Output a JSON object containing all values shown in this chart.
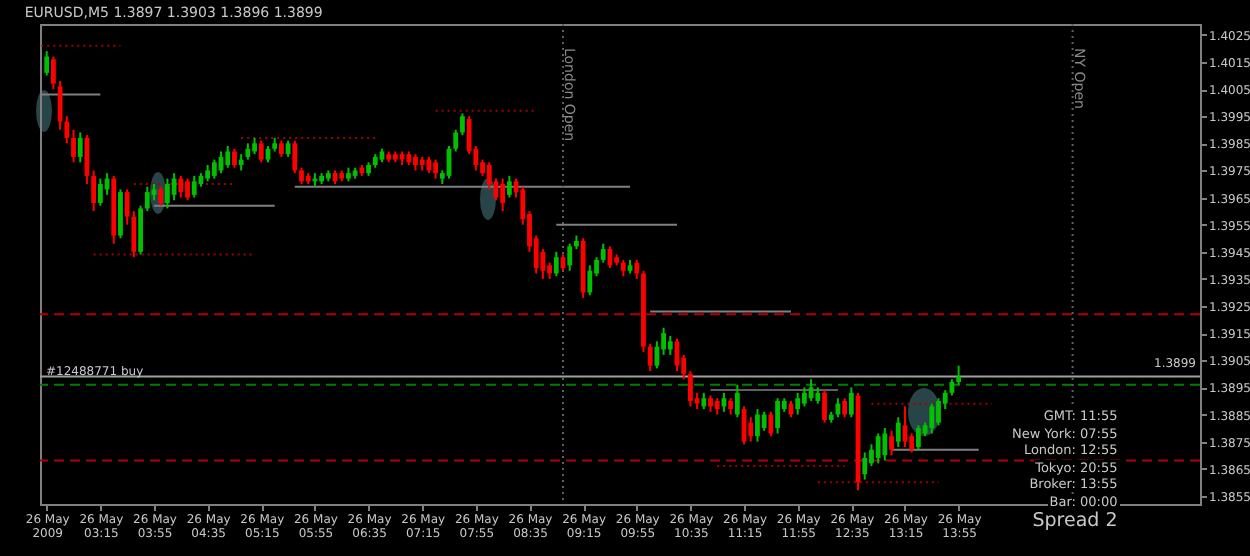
{
  "chart_data": {
    "type": "candlestick",
    "title": "EURUSD,M5 1.3897 1.3903 1.3896 1.3899",
    "colors": [
      "#00c000",
      "#ff0000",
      "#ff0000",
      "#ff0000",
      "#ff0000",
      "#00c000",
      "#ff0000",
      "#ff0000",
      "#00c000",
      "#00c000",
      "#ff0000",
      "#00c000",
      "#ff0000",
      "#ff0000",
      "#00c000",
      "#00c000",
      "#00c000",
      "#ff0000",
      "#00c000",
      "#00c000",
      "#ff0000",
      "#ff0000",
      "#00c000",
      "#00c000",
      "#00c000",
      "#00c000",
      "#00c000",
      "#00c000",
      "#ff0000",
      "#00c000",
      "#00c000",
      "#00c000",
      "#ff0000",
      "#00c000",
      "#00c000",
      "#ff0000",
      "#00c000",
      "#ff0000",
      "#ff0000",
      "#ff0000",
      "#00c000",
      "#00c000",
      "#00c000",
      "#ff0000",
      "#ff0000",
      "#00c000",
      "#00c000",
      "#ff0000",
      "#00c000",
      "#00c000",
      "#00c000",
      "#ff0000",
      "#ff0000",
      "#ff0000",
      "#ff0000",
      "#ff0000",
      "#ff0000",
      "#ff0000",
      "#ff0000",
      "#00c000",
      "#00c000",
      "#00c000",
      "#00c000",
      "#ff0000",
      "#ff0000",
      "#ff0000",
      "#ff0000",
      "#ff0000",
      "#ff0000",
      "#00c000",
      "#ff0000",
      "#ff0000",
      "#ff0000",
      "#ff0000",
      "#ff0000",
      "#ff0000",
      "#00c000",
      "#ff0000",
      "#00c000",
      "#00c000",
      "#ff0000",
      "#00c000",
      "#00c000",
      "#00c000",
      "#ff0000",
      "#ff0000",
      "#ff0000",
      "#00c000",
      "#ff0000",
      "#ff0000",
      "#ff0000",
      "#00c000",
      "#00c000",
      "#00c000",
      "#ff0000",
      "#ff0000",
      "#ff0000",
      "#ff0000",
      "#00c000",
      "#ff0000",
      "#ff0000",
      "#00c000",
      "#ff0000",
      "#00c000",
      "#ff0000",
      "#ff0000",
      "#00c000",
      "#00c000",
      "#ff0000",
      "#00c000",
      "#00c000",
      "#ff0000",
      "#00c000",
      "#00c000",
      "#00c000",
      "#00c000",
      "#ff0000",
      "#00c000",
      "#00c000",
      "#ff0000",
      "#00c000",
      "#ff0000",
      "#00c000",
      "#00c000",
      "#00c000",
      "#00c000",
      "#ff0000",
      "#00c000",
      "#ff0000",
      "#ff0000",
      "#00c000",
      "#00c000",
      "#00c000",
      "#00c000",
      "#00c000",
      "#00c000",
      "#00c000"
    ],
    "x": [
      "2009-05-26T02:35",
      "2009-05-26T02:40",
      "2009-05-26T02:45",
      "2009-05-26T02:50",
      "2009-05-26T02:55",
      "2009-05-26T03:00",
      "2009-05-26T03:05",
      "2009-05-26T03:10",
      "2009-05-26T03:15",
      "2009-05-26T03:20",
      "2009-05-26T03:25",
      "2009-05-26T03:30",
      "2009-05-26T03:35",
      "2009-05-26T03:40",
      "2009-05-26T03:45",
      "2009-05-26T03:50",
      "2009-05-26T03:55",
      "2009-05-26T04:00",
      "2009-05-26T04:05",
      "2009-05-26T04:10",
      "2009-05-26T04:15",
      "2009-05-26T04:20",
      "2009-05-26T04:25",
      "2009-05-26T04:30",
      "2009-05-26T04:35",
      "2009-05-26T04:40",
      "2009-05-26T04:45",
      "2009-05-26T04:50",
      "2009-05-26T04:55",
      "2009-05-26T05:00",
      "2009-05-26T05:05",
      "2009-05-26T05:10",
      "2009-05-26T05:15",
      "2009-05-26T05:20",
      "2009-05-26T05:25",
      "2009-05-26T05:30",
      "2009-05-26T05:35",
      "2009-05-26T05:40",
      "2009-05-26T05:45",
      "2009-05-26T05:50",
      "2009-05-26T05:55",
      "2009-05-26T06:00",
      "2009-05-26T06:05",
      "2009-05-26T06:10",
      "2009-05-26T06:15",
      "2009-05-26T06:20",
      "2009-05-26T06:25",
      "2009-05-26T06:30",
      "2009-05-26T06:35",
      "2009-05-26T06:40",
      "2009-05-26T06:45",
      "2009-05-26T06:50",
      "2009-05-26T06:55",
      "2009-05-26T07:00",
      "2009-05-26T07:05",
      "2009-05-26T07:10",
      "2009-05-26T07:15",
      "2009-05-26T07:20",
      "2009-05-26T07:25",
      "2009-05-26T07:30",
      "2009-05-26T07:35",
      "2009-05-26T07:40",
      "2009-05-26T07:45",
      "2009-05-26T07:50",
      "2009-05-26T07:55",
      "2009-05-26T08:00",
      "2009-05-26T08:05",
      "2009-05-26T08:10",
      "2009-05-26T08:15",
      "2009-05-26T08:20",
      "2009-05-26T08:25",
      "2009-05-26T08:30",
      "2009-05-26T08:35",
      "2009-05-26T08:40",
      "2009-05-26T08:45",
      "2009-05-26T08:50",
      "2009-05-26T08:55",
      "2009-05-26T09:00",
      "2009-05-26T09:05",
      "2009-05-26T09:10",
      "2009-05-26T09:15",
      "2009-05-26T09:20",
      "2009-05-26T09:25",
      "2009-05-26T09:30",
      "2009-05-26T09:35",
      "2009-05-26T09:40",
      "2009-05-26T09:45",
      "2009-05-26T09:50",
      "2009-05-26T09:55",
      "2009-05-26T10:00",
      "2009-05-26T10:05",
      "2009-05-26T10:10",
      "2009-05-26T10:15",
      "2009-05-26T10:20",
      "2009-05-26T10:25",
      "2009-05-26T10:30",
      "2009-05-26T10:35",
      "2009-05-26T10:40",
      "2009-05-26T10:45",
      "2009-05-26T10:50",
      "2009-05-26T10:55",
      "2009-05-26T11:00",
      "2009-05-26T11:05",
      "2009-05-26T11:10",
      "2009-05-26T11:15",
      "2009-05-26T11:20",
      "2009-05-26T11:25",
      "2009-05-26T11:30",
      "2009-05-26T11:35",
      "2009-05-26T11:40",
      "2009-05-26T11:45",
      "2009-05-26T11:50",
      "2009-05-26T11:55",
      "2009-05-26T12:00",
      "2009-05-26T12:05",
      "2009-05-26T12:10",
      "2009-05-26T12:15",
      "2009-05-26T12:20",
      "2009-05-26T12:25",
      "2009-05-26T12:30",
      "2009-05-26T12:35",
      "2009-05-26T12:40",
      "2009-05-26T12:45",
      "2009-05-26T12:50",
      "2009-05-26T12:55",
      "2009-05-26T13:00",
      "2009-05-26T13:05",
      "2009-05-26T13:10",
      "2009-05-26T13:15",
      "2009-05-26T13:20",
      "2009-05-26T13:25",
      "2009-05-26T13:30",
      "2009-05-26T13:35",
      "2009-05-26T13:40",
      "2009-05-26T13:45",
      "2009-05-26T13:50",
      "2009-05-26T13:55"
    ],
    "ohlc": [
      [
        1.4011,
        1.4019,
        1.401,
        1.4017
      ],
      [
        1.4016,
        1.4017,
        1.4005,
        1.4007
      ],
      [
        1.4006,
        1.4008,
        1.399,
        1.3993
      ],
      [
        1.3993,
        1.3995,
        1.3985,
        1.3987
      ],
      [
        1.3987,
        1.399,
        1.3978,
        1.398
      ],
      [
        1.398,
        1.3989,
        1.3978,
        1.3987
      ],
      [
        1.3987,
        1.3988,
        1.397,
        1.3973
      ],
      [
        1.3973,
        1.3975,
        1.396,
        1.3963
      ],
      [
        1.3963,
        1.3972,
        1.3962,
        1.397
      ],
      [
        1.3968,
        1.3974,
        1.3966,
        1.3972
      ],
      [
        1.3972,
        1.3973,
        1.3948,
        1.3951
      ],
      [
        1.3951,
        1.3968,
        1.395,
        1.3967
      ],
      [
        1.3967,
        1.3968,
        1.3955,
        1.3958
      ],
      [
        1.3958,
        1.396,
        1.3943,
        1.3945
      ],
      [
        1.3945,
        1.3962,
        1.3944,
        1.3961
      ],
      [
        1.3961,
        1.3969,
        1.396,
        1.3967
      ],
      [
        1.3966,
        1.397,
        1.3964,
        1.3968
      ],
      [
        1.3968,
        1.3969,
        1.3962,
        1.3963
      ],
      [
        1.3963,
        1.3972,
        1.3961,
        1.397
      ],
      [
        1.3966,
        1.3974,
        1.3964,
        1.3972
      ],
      [
        1.3972,
        1.3973,
        1.3965,
        1.3967
      ],
      [
        1.3971,
        1.3972,
        1.3964,
        1.3965
      ],
      [
        1.3966,
        1.3973,
        1.3965,
        1.3971
      ],
      [
        1.397,
        1.3974,
        1.3969,
        1.3973
      ],
      [
        1.3972,
        1.3977,
        1.3971,
        1.3975
      ],
      [
        1.3973,
        1.3979,
        1.3972,
        1.3978
      ],
      [
        1.3975,
        1.3982,
        1.3974,
        1.398
      ],
      [
        1.3977,
        1.3984,
        1.3976,
        1.3982
      ],
      [
        1.3982,
        1.3983,
        1.3976,
        1.3977
      ],
      [
        1.3977,
        1.3981,
        1.3975,
        1.3979
      ],
      [
        1.398,
        1.3985,
        1.3979,
        1.3983
      ],
      [
        1.3982,
        1.3987,
        1.3981,
        1.3985
      ],
      [
        1.3985,
        1.3986,
        1.3978,
        1.3979
      ],
      [
        1.3979,
        1.3984,
        1.3978,
        1.3983
      ],
      [
        1.3983,
        1.3987,
        1.3982,
        1.3985
      ],
      [
        1.3985,
        1.3986,
        1.398,
        1.3981
      ],
      [
        1.3981,
        1.3986,
        1.398,
        1.3985
      ],
      [
        1.3985,
        1.3986,
        1.3974,
        1.3975
      ],
      [
        1.3975,
        1.3976,
        1.397,
        1.3971
      ],
      [
        1.3973,
        1.3974,
        1.397,
        1.3971
      ],
      [
        1.3971,
        1.3974,
        1.3969,
        1.3972
      ],
      [
        1.3971,
        1.3974,
        1.397,
        1.3973
      ],
      [
        1.3972,
        1.3975,
        1.3971,
        1.3974
      ],
      [
        1.3974,
        1.3975,
        1.397,
        1.3971
      ],
      [
        1.3974,
        1.3975,
        1.3971,
        1.3972
      ],
      [
        1.3972,
        1.3976,
        1.3971,
        1.3974
      ],
      [
        1.3973,
        1.3976,
        1.3972,
        1.3975
      ],
      [
        1.3976,
        1.3977,
        1.3973,
        1.3974
      ],
      [
        1.3974,
        1.3978,
        1.3973,
        1.3977
      ],
      [
        1.3977,
        1.3981,
        1.3976,
        1.398
      ],
      [
        1.3979,
        1.3983,
        1.3978,
        1.3982
      ],
      [
        1.3981,
        1.3982,
        1.3978,
        1.3979
      ],
      [
        1.3981,
        1.3982,
        1.3978,
        1.3979
      ],
      [
        1.3981,
        1.3982,
        1.3977,
        1.3979
      ],
      [
        1.3981,
        1.3982,
        1.3977,
        1.3978
      ],
      [
        1.398,
        1.3981,
        1.3975,
        1.3977
      ],
      [
        1.3979,
        1.398,
        1.3975,
        1.3977
      ],
      [
        1.3979,
        1.398,
        1.3974,
        1.3975
      ],
      [
        1.3978,
        1.3979,
        1.3972,
        1.3974
      ],
      [
        1.3972,
        1.3975,
        1.397,
        1.3974
      ],
      [
        1.3973,
        1.3984,
        1.3972,
        1.3983
      ],
      [
        1.3983,
        1.399,
        1.3982,
        1.3989
      ],
      [
        1.3989,
        1.3996,
        1.3988,
        1.3995
      ],
      [
        1.3994,
        1.3995,
        1.3981,
        1.3982
      ],
      [
        1.3983,
        1.3984,
        1.3975,
        1.3977
      ],
      [
        1.3978,
        1.3979,
        1.3973,
        1.3974
      ],
      [
        1.3977,
        1.3978,
        1.3968,
        1.397
      ],
      [
        1.3971,
        1.3972,
        1.3964,
        1.3965
      ],
      [
        1.397,
        1.3972,
        1.396,
        1.3963
      ],
      [
        1.3966,
        1.3973,
        1.3965,
        1.3971
      ],
      [
        1.3971,
        1.3972,
        1.3965,
        1.3967
      ],
      [
        1.3968,
        1.3969,
        1.3955,
        1.3957
      ],
      [
        1.3959,
        1.396,
        1.3945,
        1.3947
      ],
      [
        1.395,
        1.3951,
        1.3937,
        1.3939
      ],
      [
        1.3945,
        1.3946,
        1.3935,
        1.3938
      ],
      [
        1.394,
        1.3941,
        1.3935,
        1.3937
      ],
      [
        1.3937,
        1.3945,
        1.3936,
        1.3943
      ],
      [
        1.3943,
        1.3944,
        1.3938,
        1.3939
      ],
      [
        1.394,
        1.3948,
        1.3938,
        1.3947
      ],
      [
        1.3947,
        1.3951,
        1.3946,
        1.3949
      ],
      [
        1.3949,
        1.395,
        1.3928,
        1.393
      ],
      [
        1.393,
        1.394,
        1.3929,
        1.3938
      ],
      [
        1.3937,
        1.3943,
        1.3936,
        1.3942
      ],
      [
        1.3942,
        1.3948,
        1.3941,
        1.3946
      ],
      [
        1.3946,
        1.3947,
        1.3939,
        1.394
      ],
      [
        1.3943,
        1.3944,
        1.394,
        1.3941
      ],
      [
        1.3941,
        1.3942,
        1.3936,
        1.3938
      ],
      [
        1.3938,
        1.3942,
        1.3937,
        1.394
      ],
      [
        1.3941,
        1.3942,
        1.3935,
        1.3937
      ],
      [
        1.3937,
        1.3938,
        1.3908,
        1.391
      ],
      [
        1.391,
        1.3911,
        1.3901,
        1.3903
      ],
      [
        1.3903,
        1.3912,
        1.3902,
        1.391
      ],
      [
        1.3909,
        1.3917,
        1.3907,
        1.3915
      ],
      [
        1.3909,
        1.3914,
        1.3907,
        1.3912
      ],
      [
        1.3912,
        1.3913,
        1.3901,
        1.3903
      ],
      [
        1.3906,
        1.3907,
        1.3898,
        1.39
      ],
      [
        1.39,
        1.3901,
        1.3888,
        1.389
      ],
      [
        1.3891,
        1.3893,
        1.3887,
        1.3889
      ],
      [
        1.3888,
        1.3893,
        1.3887,
        1.3891
      ],
      [
        1.3891,
        1.3892,
        1.3886,
        1.3888
      ],
      [
        1.389,
        1.3891,
        1.3885,
        1.3887
      ],
      [
        1.3888,
        1.3893,
        1.3886,
        1.3891
      ],
      [
        1.389,
        1.3891,
        1.3885,
        1.3887
      ],
      [
        1.3885,
        1.3896,
        1.3884,
        1.3893
      ],
      [
        1.3887,
        1.3888,
        1.3874,
        1.3875
      ],
      [
        1.3882,
        1.3884,
        1.3875,
        1.3877
      ],
      [
        1.3877,
        1.3887,
        1.3875,
        1.3885
      ],
      [
        1.388,
        1.3886,
        1.3879,
        1.3885
      ],
      [
        1.3885,
        1.3886,
        1.3877,
        1.3878
      ],
      [
        1.388,
        1.3891,
        1.3878,
        1.389
      ],
      [
        1.3887,
        1.3891,
        1.3886,
        1.389
      ],
      [
        1.3889,
        1.389,
        1.3884,
        1.3885
      ],
      [
        1.3887,
        1.3893,
        1.3885,
        1.3891
      ],
      [
        1.3889,
        1.3895,
        1.3888,
        1.3893
      ],
      [
        1.3891,
        1.3898,
        1.389,
        1.3895
      ],
      [
        1.389,
        1.3895,
        1.3889,
        1.3893
      ],
      [
        1.3893,
        1.3894,
        1.3882,
        1.3883
      ],
      [
        1.3883,
        1.3886,
        1.3882,
        1.3885
      ],
      [
        1.3885,
        1.3891,
        1.3884,
        1.3889
      ],
      [
        1.389,
        1.3891,
        1.3884,
        1.3885
      ],
      [
        1.3885,
        1.3895,
        1.3884,
        1.3893
      ],
      [
        1.3892,
        1.3893,
        1.3857,
        1.386
      ],
      [
        1.3863,
        1.3871,
        1.3861,
        1.3869
      ],
      [
        1.3867,
        1.3874,
        1.3866,
        1.3872
      ],
      [
        1.3869,
        1.3878,
        1.3867,
        1.3877
      ],
      [
        1.387,
        1.388,
        1.3868,
        1.3878
      ],
      [
        1.3877,
        1.3879,
        1.387,
        1.3872
      ],
      [
        1.3875,
        1.3884,
        1.3873,
        1.3882
      ],
      [
        1.3881,
        1.3888,
        1.3873,
        1.3875
      ],
      [
        1.3877,
        1.3878,
        1.3871,
        1.3872
      ],
      [
        1.3873,
        1.3881,
        1.3872,
        1.388
      ],
      [
        1.3878,
        1.3882,
        1.3877,
        1.3881
      ],
      [
        1.388,
        1.3889,
        1.3878,
        1.3888
      ],
      [
        1.3882,
        1.3891,
        1.3881,
        1.389
      ],
      [
        1.3889,
        1.3894,
        1.3887,
        1.3893
      ],
      [
        1.3893,
        1.3898,
        1.3892,
        1.3897
      ],
      [
        1.3897,
        1.3903,
        1.3896,
        1.3899
      ]
    ],
    "series": [
      {
        "type": "line",
        "color": "#a00000",
        "line_style": "dotted",
        "x": [
          "2009-05-26T02:31",
          "2009-05-26T03:30"
        ],
        "values": [
          1.4021,
          1.4021
        ]
      },
      {
        "type": "line",
        "color": "#808080",
        "line_style": "solid",
        "x": [
          "2009-05-26T02:31",
          "2009-05-26T03:15"
        ],
        "values": [
          1.4003,
          1.4003
        ]
      },
      {
        "type": "line",
        "color": "#a00000",
        "line_style": "dotted",
        "x": [
          "2009-05-26T07:25",
          "2009-05-26T08:40"
        ],
        "values": [
          1.3997,
          1.3997
        ]
      },
      {
        "type": "line",
        "color": "#a00000",
        "line_style": "dotted",
        "x": [
          "2009-05-26T05:00",
          "2009-05-26T06:40"
        ],
        "values": [
          1.3987,
          1.3987
        ]
      },
      {
        "type": "line",
        "color": "#a00000",
        "line_style": "dotted",
        "x": [
          "2009-05-26T03:40",
          "2009-05-26T04:55"
        ],
        "values": [
          1.397,
          1.397
        ]
      },
      {
        "type": "line",
        "color": "#808080",
        "line_style": "solid",
        "x": [
          "2009-05-26T05:40",
          "2009-05-26T09:50"
        ],
        "values": [
          1.3969,
          1.3969
        ]
      },
      {
        "type": "line",
        "color": "#808080",
        "line_style": "solid",
        "x": [
          "2009-05-26T03:55",
          "2009-05-26T05:25"
        ],
        "values": [
          1.3962,
          1.3962
        ]
      },
      {
        "type": "line",
        "color": "#808080",
        "line_style": "solid",
        "x": [
          "2009-05-26T08:55",
          "2009-05-26T10:25"
        ],
        "values": [
          1.3955,
          1.3955
        ]
      },
      {
        "type": "line",
        "color": "#a00000",
        "line_style": "dotted",
        "x": [
          "2009-05-26T03:10",
          "2009-05-26T05:10"
        ],
        "values": [
          1.3944,
          1.3944
        ]
      },
      {
        "type": "line",
        "color": "#808080",
        "line_style": "solid",
        "x": [
          "2009-05-26T10:05",
          "2009-05-26T11:50"
        ],
        "values": [
          1.3923,
          1.3923
        ]
      },
      {
        "type": "line",
        "color": "#606060",
        "line_style": "solid",
        "x": [
          "2009-05-26T10:50",
          "2009-05-26T12:25"
        ],
        "values": [
          1.3894,
          1.3894
        ]
      },
      {
        "type": "line",
        "color": "#a00000",
        "line_style": "dotted",
        "x": [
          "2009-05-26T12:50",
          "2009-05-26T14:20"
        ],
        "values": [
          1.3889,
          1.3889
        ]
      },
      {
        "type": "line",
        "color": "#808080",
        "line_style": "solid",
        "x": [
          "2009-05-26T13:05",
          "2009-05-26T14:10"
        ],
        "values": [
          1.3872,
          1.3872
        ]
      },
      {
        "type": "line",
        "color": "#a00000",
        "line_style": "dotted",
        "x": [
          "2009-05-26T10:55",
          "2009-05-26T12:30"
        ],
        "values": [
          1.3866,
          1.3866
        ]
      },
      {
        "type": "line",
        "color": "#a00000",
        "line_style": "dotted",
        "x": [
          "2009-05-26T12:10",
          "2009-05-26T13:40"
        ],
        "values": [
          1.386,
          1.386
        ]
      }
    ],
    "ref_lines": [
      {
        "axis": "y",
        "value": 1.3922,
        "color": "#b00000",
        "line_style": "dashed"
      },
      {
        "axis": "y",
        "value": 1.3868,
        "color": "#b00000",
        "line_style": "dashed"
      },
      {
        "axis": "y",
        "value": 1.3896,
        "label": "#12488771 buy",
        "color": "#008000",
        "line_style": "dashed"
      },
      {
        "axis": "y",
        "value": 1.3899,
        "label": "1.3899",
        "color": "#a0a0a0",
        "line_style": "solid"
      },
      {
        "axis": "x",
        "value": "2009-05-26T09:00",
        "label": "London Open",
        "color": "#606060",
        "line_style": "dotted"
      },
      {
        "axis": "x",
        "value": "2009-05-26T15:20",
        "label": "NY Open",
        "color": "#606060",
        "line_style": "dotted"
      }
    ],
    "annotations": [
      "GMT: 11:55",
      "New York: 07:55",
      "London: 12:55",
      "Tokyo: 20:55",
      "Broker: 13:55",
      "Bar: 00:00",
      "Spread 2"
    ],
    "xlim": [
      "2009-05-26T02:30",
      "2009-05-26T16:55"
    ],
    "xticks": [
      {
        "value": "2009-05-26T02:35",
        "label": "26 May 2009"
      },
      {
        "value": "2009-05-26T03:15",
        "label": "26 May 03:15"
      },
      {
        "value": "2009-05-26T03:55",
        "label": "26 May 03:55"
      },
      {
        "value": "2009-05-26T04:35",
        "label": "26 May 04:35"
      },
      {
        "value": "2009-05-26T05:15",
        "label": "26 May 05:15"
      },
      {
        "value": "2009-05-26T05:55",
        "label": "26 May 05:55"
      },
      {
        "value": "2009-05-26T06:35",
        "label": "26 May 06:35"
      },
      {
        "value": "2009-05-26T07:15",
        "label": "26 May 07:15"
      },
      {
        "value": "2009-05-26T07:55",
        "label": "26 May 07:55"
      },
      {
        "value": "2009-05-26T08:35",
        "label": "26 May 08:35"
      },
      {
        "value": "2009-05-26T09:15",
        "label": "26 May 09:15"
      },
      {
        "value": "2009-05-26T09:55",
        "label": "26 May 09:55"
      },
      {
        "value": "2009-05-26T10:35",
        "label": "26 May 10:35"
      },
      {
        "value": "2009-05-26T11:15",
        "label": "26 May 11:15"
      },
      {
        "value": "2009-05-26T11:55",
        "label": "26 May 11:55"
      },
      {
        "value": "2009-05-26T12:35",
        "label": "26 May 12:35"
      },
      {
        "value": "2009-05-26T13:15",
        "label": "26 May 13:15"
      },
      {
        "value": "2009-05-26T13:55",
        "label": "26 May 13:55"
      }
    ],
    "ylim": [
      1.3852,
      1.4029
    ],
    "yticks": [
      1.3855,
      1.3865,
      1.3875,
      1.3885,
      1.3895,
      1.3905,
      1.3915,
      1.3925,
      1.3935,
      1.3945,
      1.3955,
      1.3965,
      1.3975,
      1.3985,
      1.3995,
      1.4005,
      1.4015,
      1.4025
    ]
  }
}
